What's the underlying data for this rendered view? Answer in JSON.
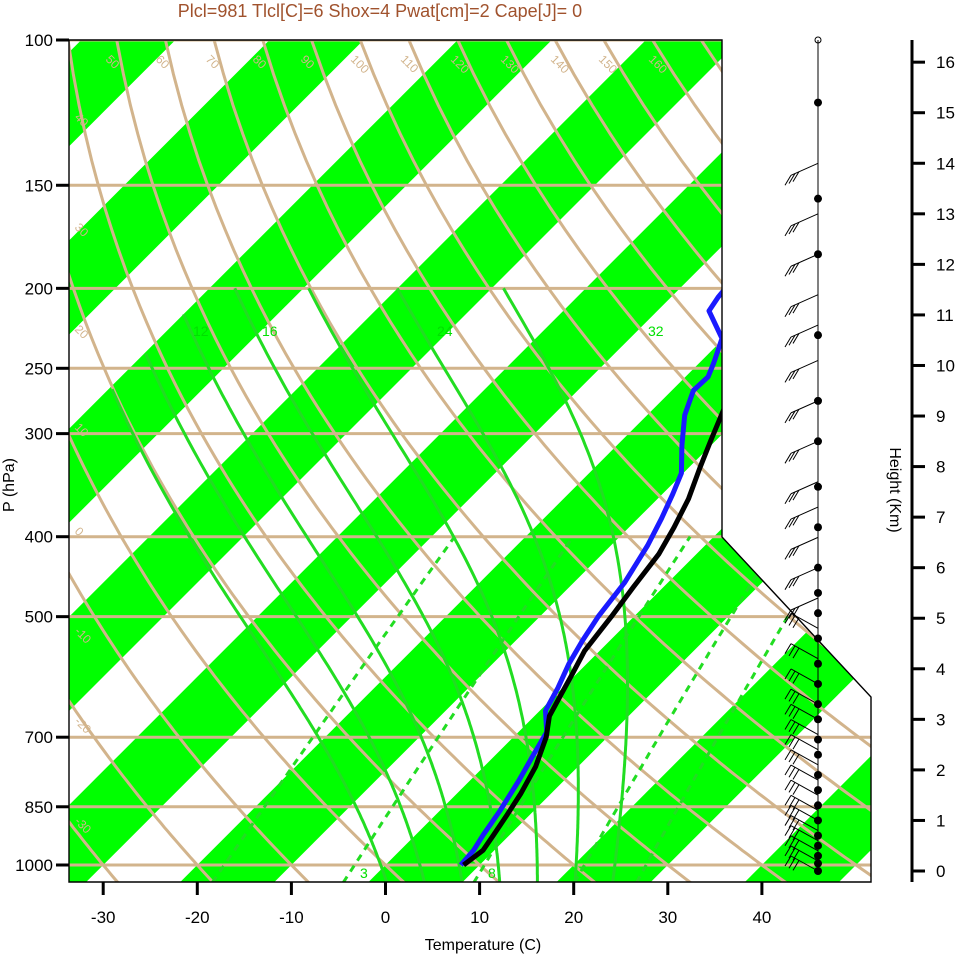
{
  "chart_data": {
    "type": "skew-t",
    "title": "Plcl=981 Tlcl[C]=6 Shox=4 Pwat[cm]=2 Cape[J]= 0",
    "xlabel": "Temperature (C)",
    "ylabel": "P (hPa)",
    "y2label": "Height (Km)",
    "x_ticks": [
      "-30",
      "-20",
      "-10",
      "0",
      "10",
      "20",
      "30",
      "40"
    ],
    "x_tick_values": [
      -30,
      -20,
      -10,
      0,
      10,
      20,
      30,
      40
    ],
    "y_ticks": [
      "100",
      "150",
      "200",
      "250",
      "300",
      "400",
      "500",
      "700",
      "850",
      "1000"
    ],
    "y_tick_values": [
      100,
      150,
      200,
      250,
      300,
      400,
      500,
      700,
      850,
      1000
    ],
    "y_scale": "log",
    "height_ticks": [
      "0",
      "1",
      "2",
      "3",
      "4",
      "5",
      "6",
      "7",
      "8",
      "9",
      "10",
      "11",
      "12",
      "13",
      "14",
      "15",
      "16"
    ],
    "height_tick_values": [
      0,
      1,
      2,
      3,
      4,
      5,
      6,
      7,
      8,
      9,
      10,
      11,
      12,
      13,
      14,
      15,
      16
    ],
    "theta_labels": [
      "50",
      "60",
      "70",
      "80",
      "90",
      "100",
      "110",
      "120",
      "130",
      "140",
      "150",
      "160"
    ],
    "theta_label_values": [
      50,
      60,
      70,
      80,
      90,
      100,
      110,
      120,
      130,
      140,
      150,
      160
    ],
    "temp_band_labels_left": [
      "40",
      "30",
      "20",
      "10",
      "0",
      "-10",
      "-20",
      "-30"
    ],
    "temp_band_labels_right": [
      "30",
      "20",
      "10",
      "0"
    ],
    "temp_band_labels_bottom": [
      "10",
      "20",
      "30"
    ],
    "mixing_labels": [
      "3",
      "8"
    ],
    "saturated_labels": [
      "12",
      "16",
      "24",
      "32"
    ],
    "colors": {
      "temperature": "#000000",
      "dewpoint": "#1a1aff",
      "isotherm_band": "#00ff00",
      "grid": "#d2b48c",
      "moist_adiabat": "#22dd22",
      "title": "#a0522d"
    },
    "series": [
      {
        "name": "temperature",
        "points": [
          [
            8.3,
            1000
          ],
          [
            8.8,
            960
          ],
          [
            8.3,
            920
          ],
          [
            7.6,
            870
          ],
          [
            6.8,
            820
          ],
          [
            5.5,
            760
          ],
          [
            3.5,
            700
          ],
          [
            1.6,
            660
          ],
          [
            0.5,
            620
          ],
          [
            -0.5,
            585
          ],
          [
            -1.6,
            550
          ],
          [
            -2.4,
            500
          ],
          [
            -3.2,
            460
          ],
          [
            -4.0,
            420
          ],
          [
            -5.2,
            390
          ],
          [
            -6.7,
            360
          ],
          [
            -8.8,
            330
          ],
          [
            -10.6,
            305
          ],
          [
            -12.5,
            280
          ],
          [
            -14.3,
            262
          ],
          [
            -13.5,
            246
          ],
          [
            -10.2,
            231
          ],
          [
            -6.2,
            215
          ],
          [
            -3.5,
            203
          ],
          [
            0.5,
            189
          ],
          [
            3.2,
            171
          ],
          [
            5.8,
            153
          ],
          [
            8.5,
            139
          ],
          [
            10.4,
            128
          ],
          [
            12.6,
            121
          ],
          [
            15.3,
            112
          ],
          [
            17.0,
            107
          ]
        ]
      },
      {
        "name": "dewpoint",
        "points": [
          [
            8.0,
            1000
          ],
          [
            7.8,
            960
          ],
          [
            7.2,
            920
          ],
          [
            6.4,
            860
          ],
          [
            5.2,
            790
          ],
          [
            4.0,
            735
          ],
          [
            3.0,
            690
          ],
          [
            0.6,
            650
          ],
          [
            -0.5,
            610
          ],
          [
            -1.9,
            570
          ],
          [
            -2.9,
            535
          ],
          [
            -3.8,
            500
          ],
          [
            -4.6,
            455
          ],
          [
            -6.1,
            410
          ],
          [
            -7.5,
            380
          ],
          [
            -8.9,
            355
          ],
          [
            -10.2,
            335
          ],
          [
            -13.1,
            310
          ],
          [
            -16.0,
            285
          ],
          [
            -17.7,
            266
          ],
          [
            -17.6,
            256
          ],
          [
            -18.5,
            246
          ],
          [
            -20.2,
            230
          ],
          [
            -24.5,
            213
          ],
          [
            -25.0,
            205
          ],
          [
            -25.5,
            190
          ],
          [
            -22.8,
            166
          ],
          [
            -19.5,
            147
          ],
          [
            -16.5,
            131
          ],
          [
            -13.6,
            118
          ],
          [
            -10.3,
            109
          ],
          [
            -7.5,
            101
          ]
        ]
      }
    ],
    "wind_barb_heights_km": [
      0,
      0.2,
      0.4,
      0.6,
      0.8,
      1.0,
      1.2,
      1.5,
      1.8,
      2.1,
      2.4,
      2.7,
      3.0,
      3.3,
      3.7,
      4.2,
      4.8,
      5.4,
      6.0,
      6.6,
      7.2,
      7.7,
      8.5,
      9.3,
      10.1,
      10.8,
      11.4,
      12.2,
      13.0,
      14.0
    ],
    "dots_heights_km": [
      0,
      0.15,
      0.3,
      0.5,
      0.7,
      1.0,
      1.3,
      1.6,
      1.9,
      2.3,
      2.6,
      3.0,
      3.3,
      3.7,
      4.1,
      4.6,
      5.1,
      5.5,
      6.0,
      6.8,
      7.6,
      8.5,
      9.3,
      10.6,
      12.2,
      13.3,
      15.2
    ]
  }
}
